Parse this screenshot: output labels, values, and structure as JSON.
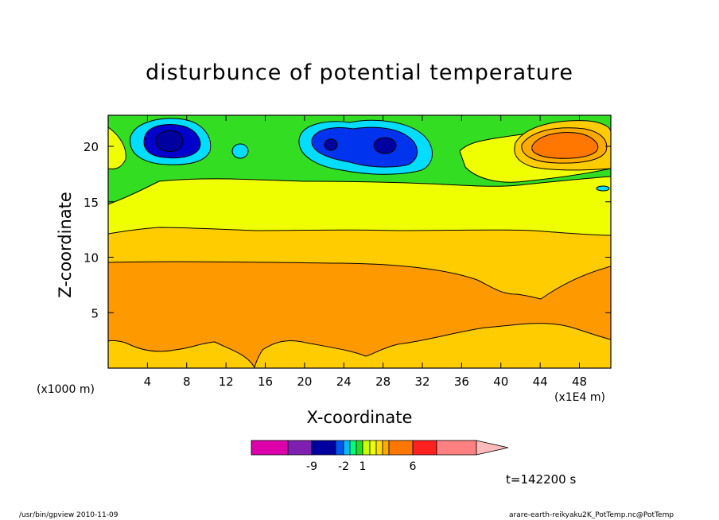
{
  "chart_data": {
    "type": "heatmap",
    "title": "disturbunce of potential temperature",
    "xlabel": "X-coordinate",
    "ylabel": "Z-coordinate",
    "x_unit": "(x1E4 m)",
    "y_unit": "(x1000 m)",
    "xlim": [
      0,
      51.2
    ],
    "ylim": [
      0,
      22.8
    ],
    "x_ticks": [
      4,
      8,
      12,
      16,
      20,
      24,
      28,
      32,
      36,
      40,
      44,
      48
    ],
    "y_ticks": [
      5,
      10,
      15,
      20
    ],
    "colorbar": {
      "colors": [
        "#dd00aa",
        "#7f1fb0",
        "#0000a0",
        "#0055ee",
        "#00bbff",
        "#00ff7f",
        "#22dd22",
        "#ccff00",
        "#eeff00",
        "#ffdd00",
        "#ffaa00",
        "#ff7700",
        "#ff2020",
        "#ff8080",
        "#ffbbbb"
      ],
      "tick_labels": [
        "-9",
        "-2",
        "1",
        "6"
      ],
      "tick_positions": [
        -9,
        -2,
        1,
        6
      ]
    },
    "regions": [
      {
        "name": "lower-orange-band",
        "x": [
          0,
          51.2
        ],
        "z": [
          1.5,
          9.6
        ],
        "approx_value": 4
      },
      {
        "name": "upper-orange-blob",
        "x": [
          41,
          51
        ],
        "z": [
          18.5,
          21.5
        ],
        "approx_value": 5
      },
      {
        "name": "blue-minimum-left",
        "x": [
          3.5,
          9.5
        ],
        "z": [
          19.3,
          21.5
        ],
        "approx_value": -6
      },
      {
        "name": "blue-minimum-center",
        "x": [
          20.5,
          31.5
        ],
        "z": [
          18.5,
          21.5
        ],
        "approx_value": -5
      }
    ]
  },
  "title": "disturbunce of potential temperature",
  "xlabel": "X-coordinate",
  "ylabel": "Z-coordinate",
  "yunit": "(x1000 m)",
  "xunit": "(x1E4 m)",
  "timestamp": "t=142200 s",
  "footer_left": "/usr/bin/gpview  2010-11-09",
  "footer_right": "arare-earth-reikyaku2K_PotTemp.nc@PotTemp"
}
